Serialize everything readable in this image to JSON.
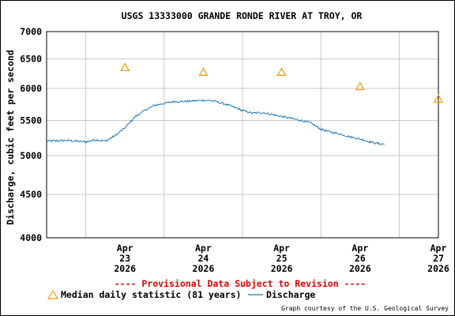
{
  "chart_data": {
    "type": "line",
    "title": "USGS 13333000 GRANDE RONDE RIVER AT TROY, OR",
    "ylabel": "Discharge, cubic feet per second",
    "xlabel": "",
    "y_scale": "log",
    "ylim": [
      4000,
      7000
    ],
    "y_ticks": [
      {
        "value": 4000,
        "label": "4000"
      },
      {
        "value": 4500,
        "label": "4500"
      },
      {
        "value": 5000,
        "label": "5000"
      },
      {
        "value": 5500,
        "label": "5500"
      },
      {
        "value": 6000,
        "label": "6000"
      },
      {
        "value": 6500,
        "label": "6500"
      },
      {
        "value": 7000,
        "label": "7000"
      }
    ],
    "xlim": [
      "2026-04-22 12:00",
      "2026-04-27 12:00"
    ],
    "x_ticks": [
      {
        "day": 23,
        "lines": [
          "Apr",
          "23",
          "2026"
        ]
      },
      {
        "day": 24,
        "lines": [
          "Apr",
          "24",
          "2026"
        ]
      },
      {
        "day": 25,
        "lines": [
          "Apr",
          "25",
          "2026"
        ]
      },
      {
        "day": 26,
        "lines": [
          "Apr",
          "26",
          "2026"
        ]
      },
      {
        "day": 27,
        "lines": [
          "Apr",
          "27",
          "2026"
        ]
      }
    ],
    "gridlines_at_midnight": true,
    "grid": true,
    "series": [
      {
        "name": "Discharge",
        "kind": "line",
        "color": "#1f77b4",
        "x": [
          "2026-04-22 12:00",
          "2026-04-22 18:00",
          "2026-04-23 00:00",
          "2026-04-23 03:00",
          "2026-04-23 06:00",
          "2026-04-23 09:00",
          "2026-04-23 12:00",
          "2026-04-23 15:00",
          "2026-04-23 18:00",
          "2026-04-23 21:00",
          "2026-04-24 00:00",
          "2026-04-24 03:00",
          "2026-04-24 06:00",
          "2026-04-24 09:00",
          "2026-04-24 12:00",
          "2026-04-24 15:00",
          "2026-04-24 18:00",
          "2026-04-24 21:00",
          "2026-04-25 00:00",
          "2026-04-25 03:00",
          "2026-04-25 06:00",
          "2026-04-25 09:00",
          "2026-04-25 12:00",
          "2026-04-25 15:00",
          "2026-04-25 18:00",
          "2026-04-25 21:00",
          "2026-04-26 00:00",
          "2026-04-26 03:00",
          "2026-04-26 06:00",
          "2026-04-26 09:00",
          "2026-04-26 12:00",
          "2026-04-26 15:00",
          "2026-04-26 18:00",
          "2026-04-26 19:30"
        ],
        "y": [
          5200,
          5210,
          5190,
          5220,
          5200,
          5280,
          5390,
          5550,
          5650,
          5730,
          5760,
          5790,
          5790,
          5800,
          5810,
          5800,
          5760,
          5710,
          5650,
          5610,
          5620,
          5590,
          5560,
          5530,
          5500,
          5460,
          5370,
          5330,
          5300,
          5260,
          5230,
          5190,
          5160,
          5160
        ]
      },
      {
        "name": "Median daily statistic (81 years)",
        "kind": "marker",
        "color": "#e8a000",
        "x": [
          "2026-04-23 12:00",
          "2026-04-24 12:00",
          "2026-04-25 12:00",
          "2026-04-26 12:00",
          "2026-04-27 12:00"
        ],
        "y": [
          6350,
          6270,
          6270,
          6030,
          5830
        ]
      }
    ],
    "legend": {
      "placement": "bottom",
      "entries": [
        {
          "label": "Median daily statistic (81 years)",
          "symbol": "triangle",
          "color": "#e8a000"
        },
        {
          "label": "Discharge",
          "symbol": "line",
          "color": "#1f77b4"
        }
      ]
    },
    "annotations": {
      "provisional": "---- Provisional Data Subject to Revision ----",
      "provisional_color": "#dd0000",
      "credit": "Graph courtesy of the U.S. Geological Survey"
    }
  }
}
